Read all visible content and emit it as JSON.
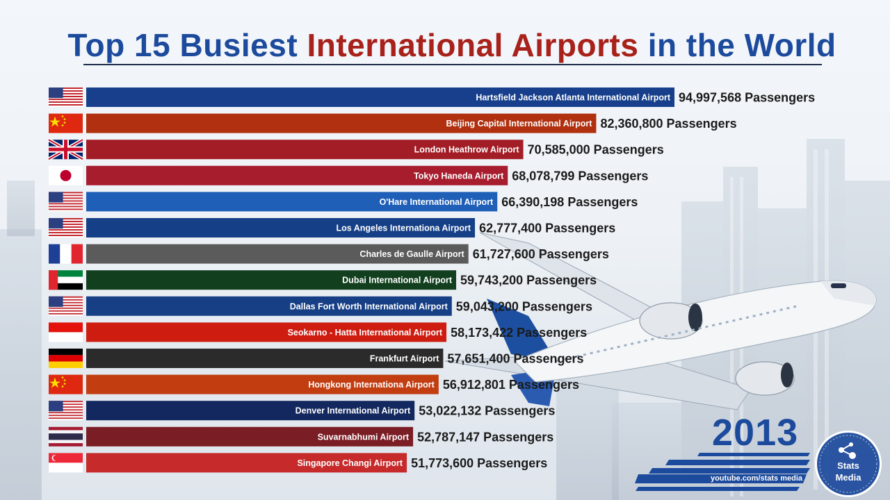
{
  "header": {
    "title_part1": "Top 15 Busiest",
    "title_part2": "International Airports",
    "title_part3": "in the World"
  },
  "year": "2013",
  "branding": {
    "channel": "youtube.com/stats media",
    "logo_line1": "Stats",
    "logo_line2": "Media"
  },
  "value_suffix": "Passengers",
  "flag_icons": [
    "us-flag-icon",
    "china-flag-icon",
    "uk-flag-icon",
    "japan-flag-icon",
    "us-flag-icon",
    "us-flag-icon",
    "france-flag-icon",
    "uae-flag-icon",
    "us-flag-icon",
    "indonesia-flag-icon",
    "germany-flag-icon",
    "china-flag-icon",
    "us-flag-icon",
    "thailand-flag-icon",
    "singapore-flag-icon"
  ],
  "bar_colors": [
    "#173f8c",
    "#b0300f",
    "#a21d25",
    "#a71d2e",
    "#1f5fb8",
    "#153f86",
    "#5b5b5b",
    "#123f1e",
    "#163f86",
    "#cf1c10",
    "#2b2b2b",
    "#c23d10",
    "#13285f",
    "#7a1d24",
    "#c62a2a"
  ],
  "chart_data": {
    "type": "bar",
    "orientation": "horizontal",
    "title": "Top 15 Busiest International Airports in the World",
    "categories": [
      "Hartsfield Jackson Atlanta International Airport",
      "Beijing Capital International Airport",
      "London Heathrow Airport",
      "Tokyo Haneda Airport",
      "O'Hare International Airport",
      "Los Angeles Internationa Airport",
      "Charles de Gaulle Airport",
      "Dubai International Airport",
      "Dallas Fort Worth International Airport",
      "Seokarno - Hatta International Airport",
      "Frankfurt Airport",
      "Hongkong Internationa Airport",
      "Denver International Airport",
      "Suvarnabhumi Airport",
      "Singapore Changi Airport"
    ],
    "values": [
      94997568,
      82360800,
      70585000,
      68078799,
      66390198,
      62777400,
      61727600,
      59743200,
      59043200,
      58173422,
      57651400,
      56912801,
      53022132,
      52787147,
      51773600
    ],
    "value_labels": [
      "94,997,568 Passengers",
      "82,360,800 Passengers",
      "70,585,000 Passengers",
      "68,078,799 Passengers",
      "66,390,198 Passengers",
      "62,777,400 Passengers",
      "61,727,600 Passengers",
      "59,743,200 Passengers",
      "59,043,200 Passengers",
      "58,173,422 Passengers",
      "57,651,400 Passengers",
      "56,912,801 Passengers",
      "53,022,132 Passengers",
      "52,787,147 Passengers",
      "51,773,600 Passengers"
    ],
    "grid": false,
    "legend": "none"
  }
}
